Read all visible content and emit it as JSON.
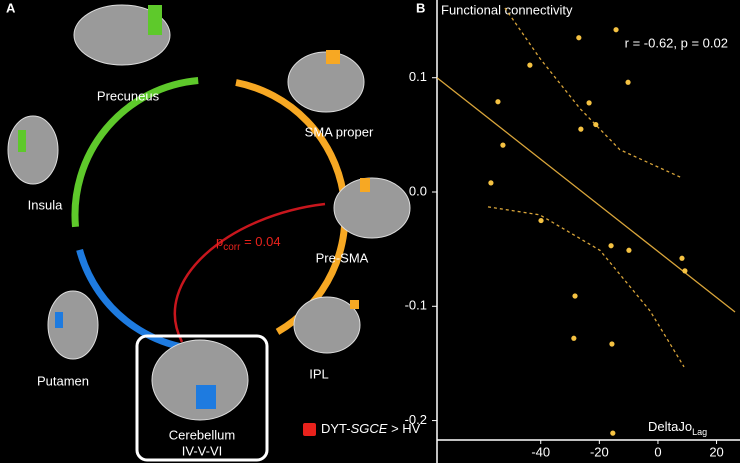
{
  "panel_a": {
    "label": "A",
    "regions": [
      {
        "label": "Precuneus",
        "color": "#5ec92b"
      },
      {
        "label": "Insula",
        "color": "#5ec92b"
      },
      {
        "label": "Putamen",
        "color": "#1e7be0"
      },
      {
        "lines": [
          "Cerebellum",
          "IV-V-VI"
        ],
        "color": "#1e7be0"
      },
      {
        "label": "IPL",
        "color": "#f7a823"
      },
      {
        "label": "Pre-SMA",
        "color": "#f7a823"
      },
      {
        "label": "SMA proper",
        "color": "#f7a823"
      }
    ],
    "connection": {
      "main": "p",
      "sub": "corr",
      "rest": " = 0.04",
      "color": "#e8221c"
    },
    "legend": {
      "pre": "DYT-",
      "italic": "SGCE",
      "post": " > HV",
      "color": "#e8221c"
    }
  },
  "chart_data": {
    "type": "scatter",
    "panel_label": "B",
    "ylabel": "Functional connectivity",
    "annotation": "r = -0.62, p = 0.02",
    "xlabel": {
      "main": "DeltaJo",
      "sub": "Lag"
    },
    "x": [
      -57,
      -54.6,
      -52.9,
      -43.7,
      -39.9,
      -27,
      -23.5,
      -26.3,
      -21.2,
      -14.3,
      -10.2,
      -28.3,
      -28.7,
      -15.7,
      -16,
      -9.9,
      8.2,
      9.2,
      -15.4
    ],
    "values": [
      0.008,
      0.079,
      0.041,
      0.111,
      -0.025,
      0.135,
      0.078,
      0.055,
      0.059,
      0.142,
      0.096,
      -0.091,
      -0.128,
      -0.133,
      -0.047,
      -0.051,
      -0.058,
      -0.069,
      -0.211
    ],
    "color": "#f5c242",
    "fit_line": {
      "x": [
        -75.4,
        26.3
      ],
      "values": [
        0.1,
        -0.105
      ],
      "color": "#d9a53a"
    },
    "ci_upper": {
      "x": [
        -52.2,
        -40.3,
        -26.6,
        -13,
        8.5
      ],
      "values": [
        0.161,
        0.117,
        0.073,
        0.037,
        0.012
      ],
      "color": "#d9a53a"
    },
    "ci_lower": {
      "x": [
        -58,
        -40.3,
        -19.8,
        -2.7,
        8.9
      ],
      "values": [
        -0.013,
        -0.02,
        -0.051,
        -0.104,
        -0.153
      ],
      "color": "#d9a53a"
    },
    "xlim": [
      -75.4,
      28
    ],
    "ylim": [
      -0.217,
      0.168
    ],
    "xticks": [
      -40,
      -20,
      0,
      20
    ],
    "yticks": [
      -0.2,
      -0.1,
      {
        "value": 0,
        "label": "0.0"
      },
      0.1
    ]
  }
}
